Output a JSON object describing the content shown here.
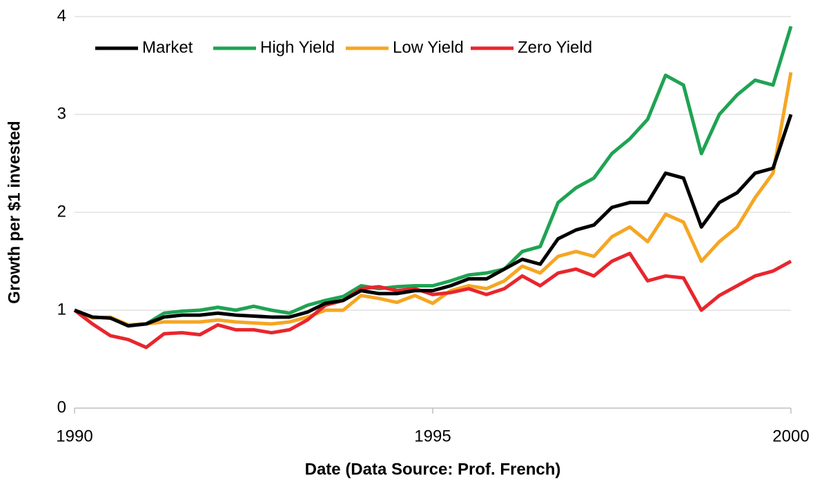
{
  "chart_data": {
    "type": "line",
    "x_label": "Date (Data Source: Prof. French)",
    "y_label": "Growth per $1 invested",
    "x": [
      1990,
      1990.25,
      1990.5,
      1990.75,
      1991,
      1991.25,
      1991.5,
      1991.75,
      1992,
      1992.25,
      1992.5,
      1992.75,
      1993,
      1993.25,
      1993.5,
      1993.75,
      1994,
      1994.25,
      1994.5,
      1994.75,
      1995,
      1995.25,
      1995.5,
      1995.75,
      1996,
      1996.25,
      1996.5,
      1996.75,
      1997,
      1997.25,
      1997.5,
      1997.75,
      1998,
      1998.25,
      1998.5,
      1998.75,
      1999,
      1999.25,
      1999.5,
      1999.75,
      2000
    ],
    "series": [
      {
        "name": "Market",
        "color": "#000000",
        "values": [
          1.0,
          0.93,
          0.92,
          0.84,
          0.86,
          0.93,
          0.95,
          0.95,
          0.97,
          0.95,
          0.94,
          0.93,
          0.93,
          0.98,
          1.07,
          1.1,
          1.2,
          1.17,
          1.17,
          1.2,
          1.2,
          1.25,
          1.32,
          1.32,
          1.42,
          1.52,
          1.47,
          1.73,
          1.82,
          1.87,
          2.05,
          2.1,
          2.1,
          2.4,
          2.35,
          1.85,
          2.1,
          2.2,
          2.4,
          2.45,
          3.0
        ]
      },
      {
        "name": "High Yield",
        "color": "#1fa353",
        "values": [
          1.0,
          0.93,
          0.92,
          0.85,
          0.86,
          0.97,
          0.99,
          1.0,
          1.03,
          1.0,
          1.04,
          1.0,
          0.97,
          1.05,
          1.1,
          1.14,
          1.25,
          1.22,
          1.24,
          1.25,
          1.25,
          1.3,
          1.36,
          1.38,
          1.42,
          1.6,
          1.65,
          2.1,
          2.25,
          2.35,
          2.6,
          2.75,
          2.95,
          3.4,
          3.3,
          2.6,
          3.0,
          3.2,
          3.35,
          3.3,
          3.9
        ]
      },
      {
        "name": "Low Yield",
        "color": "#f5a623",
        "values": [
          1.0,
          0.92,
          0.93,
          0.85,
          0.86,
          0.88,
          0.88,
          0.88,
          0.9,
          0.88,
          0.87,
          0.86,
          0.88,
          0.93,
          1.0,
          1.0,
          1.15,
          1.12,
          1.08,
          1.15,
          1.07,
          1.2,
          1.25,
          1.22,
          1.3,
          1.45,
          1.38,
          1.55,
          1.6,
          1.55,
          1.75,
          1.85,
          1.7,
          1.98,
          1.9,
          1.5,
          1.7,
          1.85,
          2.15,
          2.4,
          3.43
        ]
      },
      {
        "name": "Zero Yield",
        "color": "#e8262d",
        "values": [
          1.0,
          0.86,
          0.74,
          0.7,
          0.62,
          0.76,
          0.77,
          0.75,
          0.85,
          0.8,
          0.8,
          0.77,
          0.8,
          0.9,
          1.05,
          1.1,
          1.22,
          1.24,
          1.2,
          1.22,
          1.16,
          1.18,
          1.22,
          1.16,
          1.22,
          1.35,
          1.25,
          1.38,
          1.42,
          1.35,
          1.5,
          1.58,
          1.3,
          1.35,
          1.33,
          1.0,
          1.15,
          1.25,
          1.35,
          1.4,
          1.5
        ]
      }
    ],
    "xlim": [
      1990,
      2000
    ],
    "xticks": [
      1990,
      1995,
      2000
    ],
    "ylim": [
      0,
      4
    ],
    "yticks": [
      0,
      1,
      2,
      3,
      4
    ],
    "grid": true,
    "legend": "top-left"
  }
}
